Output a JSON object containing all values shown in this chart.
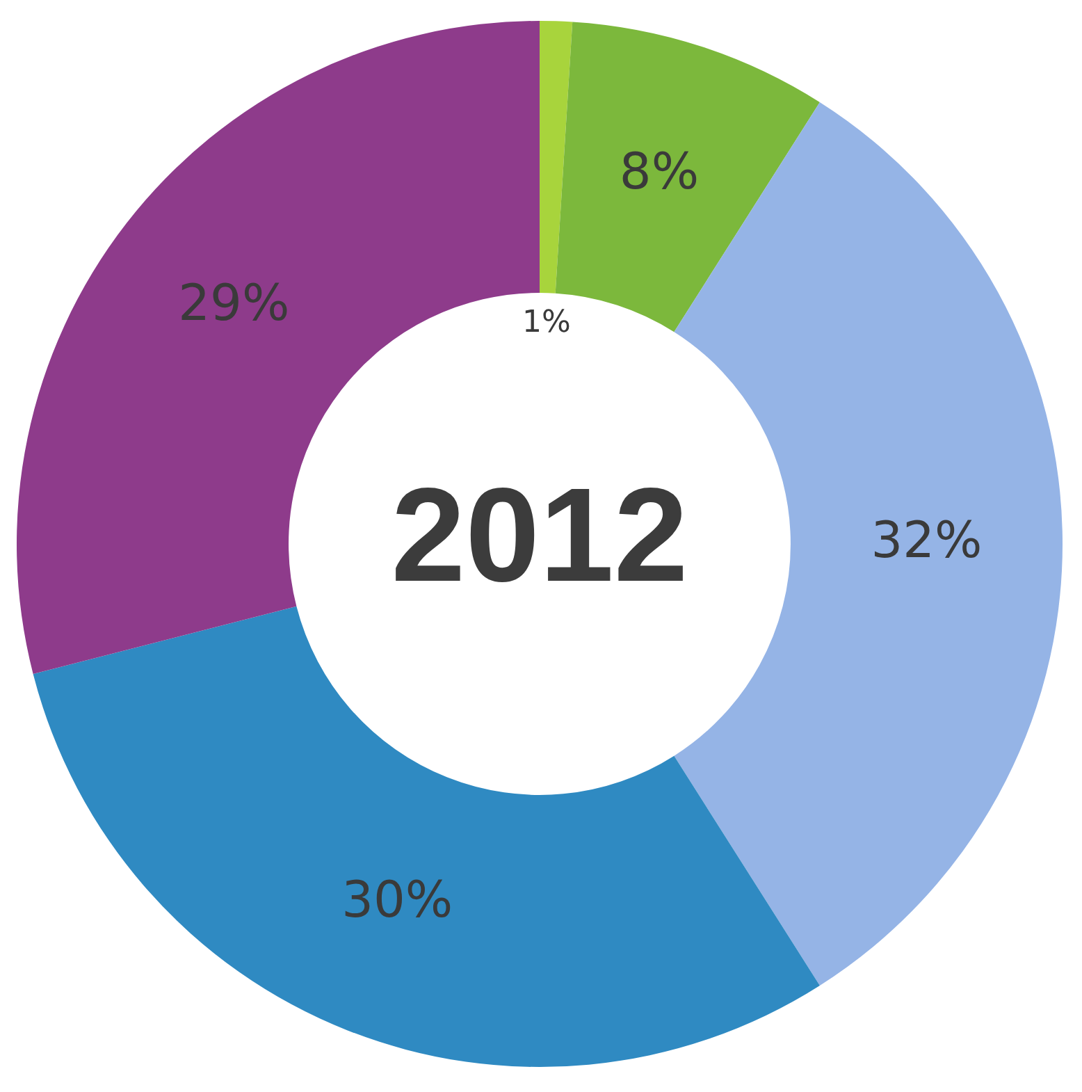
{
  "chart_data": {
    "type": "donut",
    "title": "2012",
    "categories": [
      null,
      null,
      null,
      null,
      null
    ],
    "values": [
      1,
      8,
      32,
      30,
      29
    ],
    "colors": [
      "#a8d43c",
      "#7cb83c",
      "#95b4e6",
      "#2f8ac2",
      "#8e3b8b"
    ],
    "value_labels": [
      "1%",
      "8%",
      "32%",
      "30%",
      "29%"
    ],
    "legend": false
  }
}
